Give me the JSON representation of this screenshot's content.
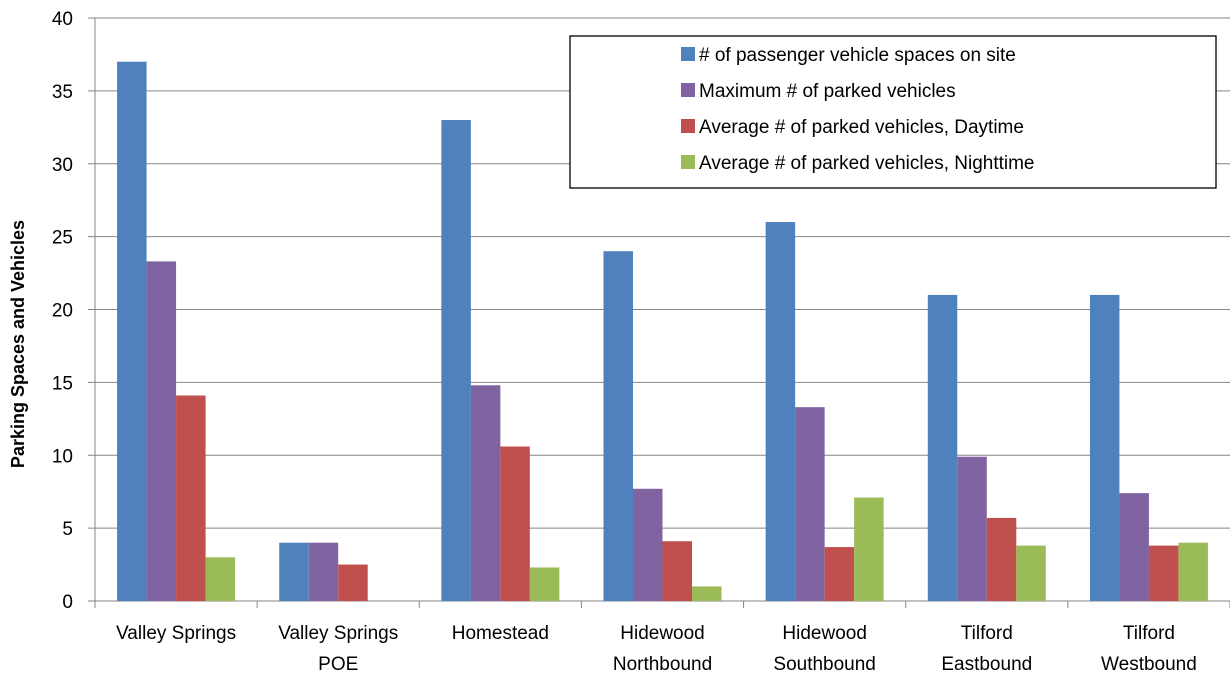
{
  "chart_data": {
    "type": "bar",
    "title": "",
    "xlabel": "",
    "ylabel": "Parking Spaces and Vehicles",
    "ylim": [
      0,
      40
    ],
    "yticks": [
      0,
      5,
      10,
      15,
      20,
      25,
      30,
      35,
      40
    ],
    "grid": true,
    "legend_position": "top-right",
    "categories": [
      [
        "Valley Springs"
      ],
      [
        "Valley Springs",
        "POE"
      ],
      [
        "Homestead"
      ],
      [
        "Hidewood",
        "Northbound"
      ],
      [
        "Hidewood",
        "Southbound"
      ],
      [
        "Tilford",
        "Eastbound"
      ],
      [
        "Tilford",
        "Westbound"
      ]
    ],
    "series": [
      {
        "name": "# of passenger vehicle spaces on site",
        "color": "#4f81bd",
        "values": [
          37,
          4,
          33,
          24,
          26,
          21,
          21
        ]
      },
      {
        "name": "Maximum # of parked vehicles",
        "color": "#8064a2",
        "values": [
          23.3,
          4,
          14.8,
          7.7,
          13.3,
          9.9,
          7.4
        ]
      },
      {
        "name": "Average # of parked vehicles, Daytime",
        "color": "#c0504d",
        "values": [
          14.1,
          2.5,
          10.6,
          4.1,
          3.7,
          5.7,
          3.8
        ]
      },
      {
        "name": "Average # of parked vehicles, Nighttime",
        "color": "#9bbb59",
        "values": [
          3.0,
          0,
          2.3,
          1.0,
          7.1,
          3.8,
          4.0
        ]
      }
    ]
  }
}
